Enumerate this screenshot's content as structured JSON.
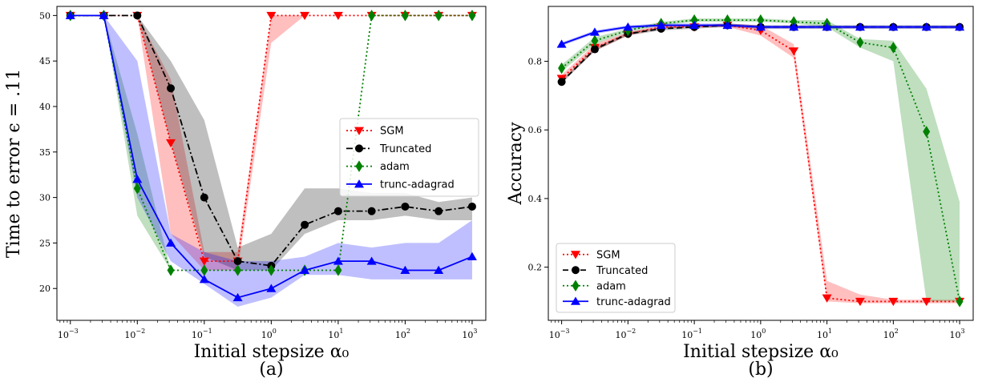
{
  "chart_data": [
    {
      "type": "line",
      "caption": "(a)",
      "xlabel": "Initial stepsize α₀",
      "ylabel": "Time to error ϵ = .11",
      "xscale": "log",
      "xlim": [
        0.00063,
        1600
      ],
      "ylim": [
        16.5,
        51
      ],
      "x": [
        0.001,
        0.00316,
        0.01,
        0.0316,
        0.1,
        0.316,
        1,
        3.16,
        10,
        31.6,
        100,
        316,
        1000
      ],
      "x_tick_values": [
        0.001,
        0.01,
        0.1,
        1,
        10,
        100,
        1000
      ],
      "x_tick_labels": [
        {
          "base": "10",
          "exp": "−3"
        },
        {
          "base": "10",
          "exp": "−2"
        },
        {
          "base": "10",
          "exp": "−1"
        },
        {
          "base": "10",
          "exp": "0"
        },
        {
          "base": "10",
          "exp": "1"
        },
        {
          "base": "10",
          "exp": "2"
        },
        {
          "base": "10",
          "exp": "3"
        }
      ],
      "y_tick_values": [
        20,
        25,
        30,
        35,
        40,
        45,
        50
      ],
      "y_tick_labels": [
        "20",
        "25",
        "30",
        "35",
        "40",
        "45",
        "50"
      ],
      "legend_position": "center-right",
      "series": [
        {
          "name": "SGM",
          "color": "#ff0000",
          "dash": "dotted",
          "marker": "triangle-down",
          "values": [
            50,
            50,
            50,
            36,
            23,
            23,
            50,
            50,
            50,
            50,
            50,
            50,
            50
          ],
          "lower": [
            50,
            50,
            50,
            26,
            22,
            22,
            47,
            50,
            50,
            50,
            50,
            50,
            50
          ],
          "upper": [
            50,
            50,
            50,
            43,
            24,
            24,
            50,
            50,
            50,
            50,
            50,
            50,
            50
          ]
        },
        {
          "name": "Truncated",
          "color": "#000000",
          "dash": "dashdot",
          "marker": "circle",
          "values": [
            50,
            50,
            50,
            42,
            30,
            23,
            22.5,
            27,
            28.5,
            28.5,
            29,
            28.5,
            29
          ],
          "lower": [
            50,
            50,
            50,
            36,
            23.5,
            22,
            22,
            26,
            27.5,
            27.5,
            28,
            27.5,
            27.5
          ],
          "upper": [
            50,
            50,
            50,
            45,
            38.5,
            24.5,
            26,
            31,
            31,
            30.5,
            30.5,
            29.5,
            30
          ]
        },
        {
          "name": "adam",
          "color": "#008000",
          "dash": "dotted",
          "marker": "diamond",
          "values": [
            50,
            50,
            31,
            22,
            22,
            22,
            22,
            22,
            22,
            50,
            50,
            50,
            50
          ],
          "lower": [
            50,
            50,
            28,
            22,
            22,
            22,
            22,
            22,
            22,
            50,
            50,
            50,
            50
          ],
          "upper": [
            50,
            50,
            37,
            22,
            22,
            22,
            22,
            22,
            22,
            50,
            50,
            50,
            50
          ]
        },
        {
          "name": "trunc-adagrad",
          "color": "#0000ff",
          "dash": "solid",
          "marker": "triangle-up",
          "values": [
            50,
            50,
            32,
            25,
            21,
            19,
            20,
            22,
            23,
            23,
            22,
            22,
            23.5
          ],
          "lower": [
            50,
            50,
            30,
            23,
            20.5,
            18,
            19,
            21.5,
            21.5,
            21,
            21,
            21,
            21
          ],
          "upper": [
            50,
            50,
            45,
            26,
            24,
            23,
            23,
            23.5,
            25,
            24.5,
            25,
            25,
            27.5
          ]
        }
      ]
    },
    {
      "type": "line",
      "caption": "(b)",
      "xlabel": "Initial stepsize α₀",
      "ylabel": "Accuracy",
      "xscale": "log",
      "xlim": [
        0.00063,
        1600
      ],
      "ylim": [
        0.045,
        0.96
      ],
      "x": [
        0.001,
        0.00316,
        0.01,
        0.0316,
        0.1,
        0.316,
        1,
        3.16,
        10,
        31.6,
        100,
        316,
        1000
      ],
      "x_tick_values": [
        0.001,
        0.01,
        0.1,
        1,
        10,
        100,
        1000
      ],
      "x_tick_labels": [
        {
          "base": "10",
          "exp": "−3"
        },
        {
          "base": "10",
          "exp": "−2"
        },
        {
          "base": "10",
          "exp": "−1"
        },
        {
          "base": "10",
          "exp": "0"
        },
        {
          "base": "10",
          "exp": "1"
        },
        {
          "base": "10",
          "exp": "2"
        },
        {
          "base": "10",
          "exp": "3"
        }
      ],
      "y_tick_values": [
        0.2,
        0.4,
        0.6,
        0.8
      ],
      "y_tick_labels": [
        "0.2",
        "0.4",
        "0.6",
        "0.8"
      ],
      "legend_position": "lower-left",
      "series": [
        {
          "name": "SGM",
          "color": "#ff0000",
          "dash": "dotted",
          "marker": "triangle-down",
          "values": [
            0.75,
            0.84,
            0.88,
            0.9,
            0.9,
            0.905,
            0.89,
            0.83,
            0.11,
            0.1,
            0.1,
            0.1,
            0.1
          ],
          "lower": [
            0.74,
            0.83,
            0.875,
            0.895,
            0.9,
            0.9,
            0.875,
            0.81,
            0.1,
            0.095,
            0.095,
            0.095,
            0.095
          ],
          "upper": [
            0.76,
            0.85,
            0.885,
            0.905,
            0.905,
            0.91,
            0.905,
            0.85,
            0.16,
            0.12,
            0.105,
            0.105,
            0.105
          ]
        },
        {
          "name": "Truncated",
          "color": "#000000",
          "dash": "dashed",
          "marker": "circle",
          "values": [
            0.74,
            0.835,
            0.88,
            0.895,
            0.9,
            0.905,
            0.9,
            0.9,
            0.9,
            0.9,
            0.9,
            0.9,
            0.9
          ],
          "lower": [
            0.735,
            0.83,
            0.875,
            0.89,
            0.895,
            0.9,
            0.895,
            0.895,
            0.895,
            0.895,
            0.895,
            0.895,
            0.895
          ],
          "upper": [
            0.745,
            0.84,
            0.885,
            0.9,
            0.905,
            0.91,
            0.905,
            0.905,
            0.905,
            0.905,
            0.905,
            0.905,
            0.905
          ]
        },
        {
          "name": "adam",
          "color": "#008000",
          "dash": "dotted",
          "marker": "diamond",
          "values": [
            0.78,
            0.86,
            0.89,
            0.91,
            0.92,
            0.92,
            0.92,
            0.915,
            0.91,
            0.855,
            0.84,
            0.595,
            0.1
          ],
          "lower": [
            0.77,
            0.85,
            0.885,
            0.905,
            0.915,
            0.915,
            0.915,
            0.91,
            0.9,
            0.84,
            0.8,
            0.1,
            0.1
          ],
          "upper": [
            0.79,
            0.87,
            0.895,
            0.915,
            0.925,
            0.925,
            0.925,
            0.92,
            0.92,
            0.865,
            0.86,
            0.72,
            0.39
          ]
        },
        {
          "name": "trunc-adagrad",
          "color": "#0000ff",
          "dash": "solid",
          "marker": "triangle-up",
          "values": [
            0.85,
            0.885,
            0.9,
            0.905,
            0.905,
            0.905,
            0.9,
            0.9,
            0.9,
            0.9,
            0.9,
            0.9,
            0.9
          ],
          "lower": [
            0.845,
            0.88,
            0.895,
            0.9,
            0.9,
            0.9,
            0.895,
            0.895,
            0.895,
            0.895,
            0.895,
            0.895,
            0.895
          ],
          "upper": [
            0.855,
            0.89,
            0.905,
            0.91,
            0.91,
            0.91,
            0.905,
            0.905,
            0.905,
            0.905,
            0.905,
            0.905,
            0.905
          ]
        }
      ]
    }
  ]
}
